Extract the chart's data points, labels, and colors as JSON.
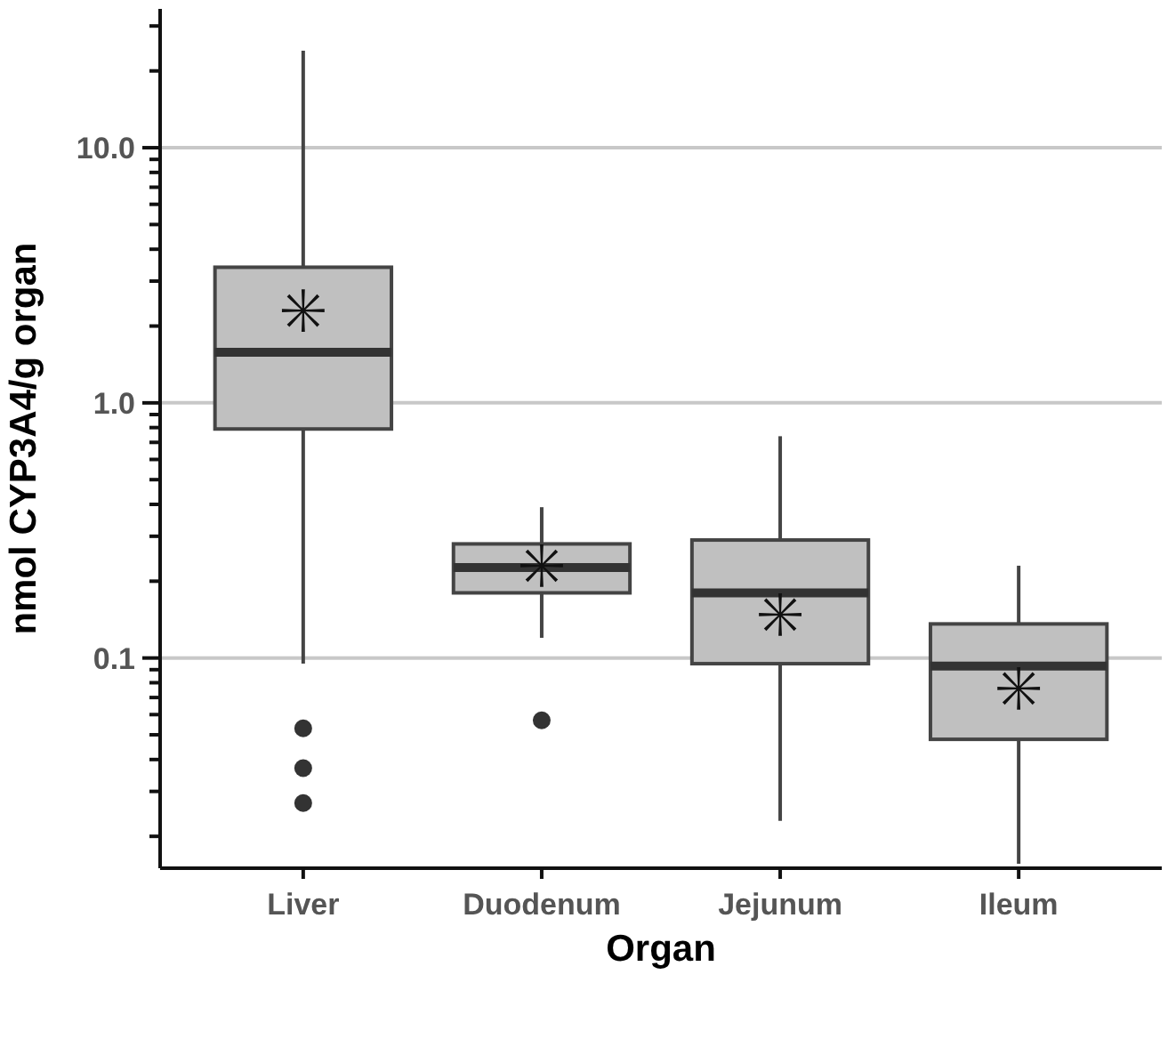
{
  "chart_data": {
    "type": "box",
    "xlabel": "Organ",
    "ylabel": "nmol CYP3A4/g organ",
    "categories": [
      "Liver",
      "Duodenum",
      "Jejunum",
      "Ileum"
    ],
    "color": "#c0c0c0",
    "log": true,
    "grid": "y",
    "marker": "star",
    "boxes": [
      {
        "low": 0.095,
        "q1": 0.79,
        "median": 1.58,
        "q3": 3.4,
        "high": 24,
        "mean": 2.3,
        "outliers": [
          0.053,
          0.037,
          0.027
        ]
      },
      {
        "low": 0.12,
        "q1": 0.18,
        "median": 0.226,
        "q3": 0.28,
        "high": 0.39,
        "mean": 0.23,
        "outliers": [
          0.057
        ]
      },
      {
        "low": 0.023,
        "q1": 0.095,
        "median": 0.18,
        "q3": 0.29,
        "high": 0.74,
        "mean": 0.148
      },
      {
        "low": 0.0156,
        "q1": 0.048,
        "median": 0.093,
        "q3": 0.136,
        "high": 0.23,
        "mean": 0.076
      }
    ],
    "ylim": [
      0.015,
      35
    ],
    "yticks": [
      {
        "value": 0.02,
        "label": null
      },
      {
        "value": 0.03,
        "label": null
      },
      {
        "value": 0.04,
        "label": null
      },
      {
        "value": 0.05,
        "label": null
      },
      {
        "value": 0.06,
        "label": null
      },
      {
        "value": 0.07,
        "label": null
      },
      {
        "value": 0.08,
        "label": null
      },
      {
        "value": 0.09,
        "label": null
      },
      {
        "value": 0.1,
        "label": "0.1"
      },
      {
        "value": 0.2,
        "label": null
      },
      {
        "value": 0.3,
        "label": null
      },
      {
        "value": 0.4,
        "label": null
      },
      {
        "value": 0.5,
        "label": null
      },
      {
        "value": 0.6,
        "label": null
      },
      {
        "value": 0.7,
        "label": null
      },
      {
        "value": 0.8,
        "label": null
      },
      {
        "value": 0.9,
        "label": null
      },
      {
        "value": 1,
        "label": "1.0"
      },
      {
        "value": 2,
        "label": null
      },
      {
        "value": 3,
        "label": null
      },
      {
        "value": 4,
        "label": null
      },
      {
        "value": 5,
        "label": null
      },
      {
        "value": 6,
        "label": null
      },
      {
        "value": 7,
        "label": null
      },
      {
        "value": 8,
        "label": null
      },
      {
        "value": 9,
        "label": null
      },
      {
        "value": 10,
        "label": "10.0"
      },
      {
        "value": 20,
        "label": null
      },
      {
        "value": 30,
        "label": null
      }
    ]
  }
}
